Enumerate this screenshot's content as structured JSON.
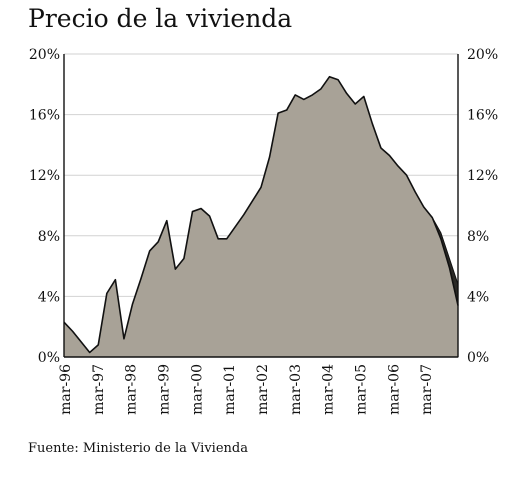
{
  "chart_data": {
    "type": "area",
    "title": "Precio de la vivienda",
    "source": "Fuente: Ministerio de la Vivienda",
    "xlabel": "",
    "ylabel": "",
    "ylim": [
      0,
      20
    ],
    "y_ticks": [
      "0%",
      "4%",
      "8%",
      "12%",
      "16%",
      "20%"
    ],
    "x_ticks": [
      "mar-96",
      "mar-97",
      "mar-98",
      "mar-99",
      "mar-00",
      "mar-01",
      "mar-02",
      "mar-03",
      "mar-04",
      "mar-05",
      "mar-06",
      "mar-07"
    ],
    "grid": true,
    "fill_color": "#a8a297",
    "forecast_color": "#2a2926",
    "series": [
      {
        "values": [
          2.3,
          1.7,
          1.0,
          0.3,
          0.8,
          4.2,
          5.1,
          1.2,
          3.5,
          5.2,
          7.0,
          7.6,
          9.0,
          5.8,
          6.5,
          9.6,
          9.8,
          9.3,
          7.8,
          7.8,
          8.6,
          9.4,
          10.3,
          11.2,
          13.2,
          16.1,
          16.3,
          17.3,
          17.0,
          17.3,
          17.7,
          18.5,
          18.3,
          17.4,
          16.7,
          17.2,
          15.4,
          13.8,
          13.3,
          12.6,
          12.0,
          10.9,
          9.9,
          9.2,
          7.8,
          5.9,
          3.4
        ]
      },
      {
        "values": [
          null,
          null,
          null,
          null,
          null,
          null,
          null,
          null,
          null,
          null,
          null,
          null,
          null,
          null,
          null,
          null,
          null,
          null,
          null,
          null,
          null,
          null,
          null,
          null,
          null,
          null,
          null,
          null,
          null,
          null,
          null,
          null,
          null,
          null,
          null,
          null,
          null,
          null,
          null,
          null,
          null,
          null,
          null,
          9.2,
          8.2,
          6.5,
          4.8
        ]
      }
    ]
  }
}
